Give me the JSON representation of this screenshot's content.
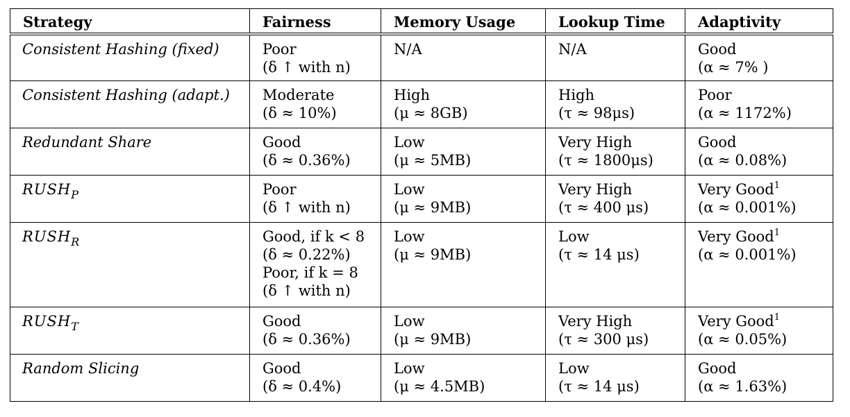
{
  "table": {
    "headers": [
      "Strategy",
      "Fairness",
      "Memory Usage",
      "Lookup Time",
      "Adaptivity"
    ],
    "rows": [
      {
        "strategy": "Consistent Hashing (fixed)",
        "fairness": [
          "Poor",
          "(δ ↑ with n)"
        ],
        "memory": [
          "N/A"
        ],
        "lookup": [
          "N/A"
        ],
        "adaptivity": [
          "Good",
          "(α ≈ 7% )"
        ]
      },
      {
        "strategy": "Consistent Hashing (adapt.)",
        "fairness": [
          "Moderate",
          "(δ ≈ 10%)"
        ],
        "memory": [
          "High",
          "(μ ≈ 8GB)"
        ],
        "lookup": [
          "High",
          "(τ ≈ 98μs)"
        ],
        "adaptivity": [
          "Poor",
          "(α ≈ 1172%)"
        ]
      },
      {
        "strategy": "Redundant Share",
        "fairness": [
          "Good",
          "(δ ≈ 0.36%)"
        ],
        "memory": [
          "Low",
          "(μ ≈ 5MB)"
        ],
        "lookup": [
          "Very High",
          "(τ ≈ 1800μs)"
        ],
        "adaptivity": [
          "Good",
          "(α ≈ 0.08%)"
        ]
      },
      {
        "strategy": "RUSH",
        "strategy_sub": "P",
        "fairness": [
          "Poor",
          "(δ ↑ with n)"
        ],
        "memory": [
          "Low",
          "(μ ≈ 9MB)"
        ],
        "lookup": [
          "Very High",
          "(τ ≈ 400 μs)"
        ],
        "adaptivity": [
          "Very Good",
          "(α ≈ 0.001%)"
        ],
        "adaptivity_sup": "1"
      },
      {
        "strategy": "RUSH",
        "strategy_sub": "R",
        "fairness": [
          "Good, if k < 8",
          "(δ ≈ 0.22%)",
          "Poor, if k = 8",
          "(δ ↑ with n)"
        ],
        "memory": [
          "Low",
          "(μ ≈ 9MB)"
        ],
        "lookup": [
          "Low",
          "(τ ≈ 14 μs)"
        ],
        "adaptivity": [
          "Very Good",
          "(α ≈ 0.001%)"
        ],
        "adaptivity_sup": "1"
      },
      {
        "strategy": "RUSH",
        "strategy_sub": "T",
        "fairness": [
          "Good",
          "(δ ≈ 0.36%)"
        ],
        "memory": [
          "Low",
          "(μ ≈ 9MB)"
        ],
        "lookup": [
          "Very High",
          "(τ ≈ 300 μs)"
        ],
        "adaptivity": [
          "Very Good",
          "(α ≈ 0.05%)"
        ],
        "adaptivity_sup": "1"
      },
      {
        "strategy": "Random Slicing",
        "fairness": [
          "Good",
          "(δ ≈ 0.4%)"
        ],
        "memory": [
          "Low",
          "(μ ≈ 4.5MB)"
        ],
        "lookup": [
          "Low",
          "(τ ≈ 14 μs)"
        ],
        "adaptivity": [
          "Good",
          "(α ≈ 1.63%)"
        ]
      }
    ]
  }
}
